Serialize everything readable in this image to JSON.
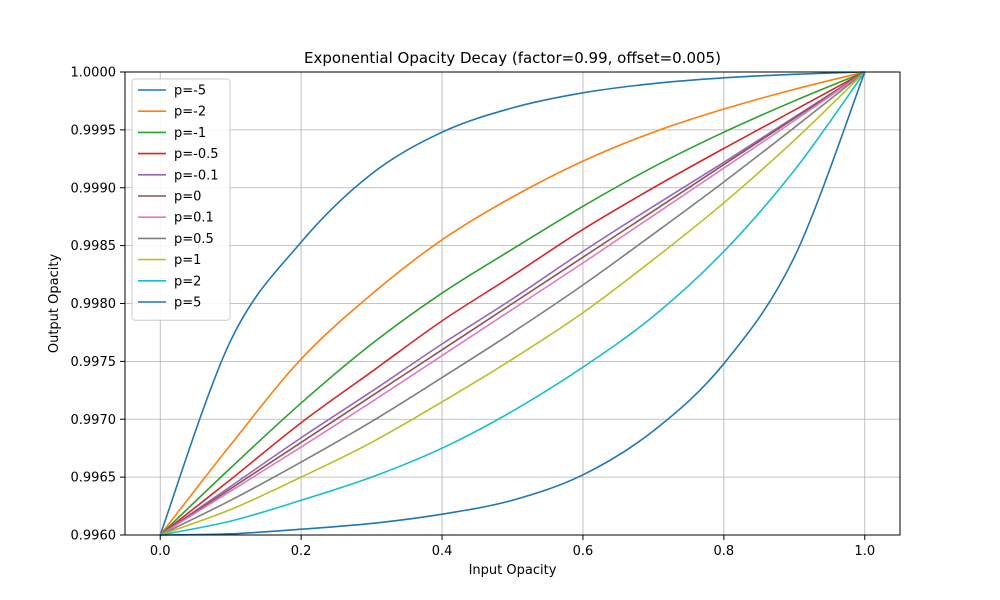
{
  "chart_data": {
    "type": "line",
    "title": "Exponential Opacity Decay (factor=0.99, offset=0.005)",
    "xlabel": "Input Opacity",
    "ylabel": "Output Opacity",
    "xlim": [
      -0.05,
      1.05
    ],
    "ylim": [
      0.996,
      1.0
    ],
    "xticks": [
      0.0,
      0.2,
      0.4,
      0.6,
      0.8,
      1.0
    ],
    "xtick_labels": [
      "0.0",
      "0.2",
      "0.4",
      "0.6",
      "0.8",
      "1.0"
    ],
    "yticks": [
      0.996,
      0.9965,
      0.997,
      0.9975,
      0.998,
      0.9985,
      0.999,
      0.9995,
      1.0
    ],
    "ytick_labels": [
      "0.9960",
      "0.9965",
      "0.9970",
      "0.9975",
      "0.9980",
      "0.9985",
      "0.9990",
      "0.9995",
      "1.0000"
    ],
    "grid": true,
    "legend_position": "top-left",
    "x": [
      0.0,
      0.1,
      0.2,
      0.3,
      0.4,
      0.5,
      0.6,
      0.7,
      0.8,
      0.9,
      1.0
    ],
    "series": [
      {
        "name": "p=-5",
        "color": "#1f77b4",
        "values": [
          0.996,
          0.99768,
          0.99853,
          0.99912,
          0.99948,
          0.99969,
          0.99982,
          0.9999,
          0.99995,
          0.99998,
          1.0
        ]
      },
      {
        "name": "p=-2",
        "color": "#ff7f0e",
        "values": [
          0.996,
          0.99678,
          0.99752,
          0.99808,
          0.99855,
          0.99892,
          0.99923,
          0.99948,
          0.99968,
          0.99985,
          1.0
        ]
      },
      {
        "name": "p=-1",
        "color": "#2ca02c",
        "values": [
          0.996,
          0.99658,
          0.99714,
          0.99765,
          0.99809,
          0.99847,
          0.99884,
          0.99918,
          0.99948,
          0.99975,
          1.0
        ]
      },
      {
        "name": "p=-0.5",
        "color": "#d62728",
        "values": [
          0.996,
          0.99648,
          0.99697,
          0.99741,
          0.99785,
          0.99824,
          0.99864,
          0.999,
          0.99934,
          0.99967,
          1.0
        ]
      },
      {
        "name": "p=-0.1",
        "color": "#9467bd",
        "values": [
          0.996,
          0.99642,
          0.99684,
          0.99724,
          0.99765,
          0.99804,
          0.99845,
          0.99884,
          0.99922,
          0.99961,
          1.0
        ]
      },
      {
        "name": "p=0",
        "color": "#8c564b",
        "values": [
          0.996,
          0.9964,
          0.9968,
          0.9972,
          0.9976,
          0.998,
          0.9984,
          0.9988,
          0.9992,
          0.9996,
          1.0
        ]
      },
      {
        "name": "p=0.1",
        "color": "#e377c2",
        "values": [
          0.996,
          0.99638,
          0.99676,
          0.99715,
          0.99755,
          0.99795,
          0.99835,
          0.99876,
          0.99917,
          0.99958,
          1.0
        ]
      },
      {
        "name": "p=0.5",
        "color": "#7f7f7f",
        "values": [
          0.996,
          0.9963,
          0.99663,
          0.99698,
          0.99736,
          0.99775,
          0.99816,
          0.9986,
          0.99905,
          0.99952,
          1.0
        ]
      },
      {
        "name": "p=1",
        "color": "#bcbd22",
        "values": [
          0.996,
          0.99622,
          0.9965,
          0.9968,
          0.99715,
          0.99752,
          0.99792,
          0.99838,
          0.99887,
          0.99941,
          1.0
        ]
      },
      {
        "name": "p=2",
        "color": "#17becf",
        "values": [
          0.996,
          0.99612,
          0.9963,
          0.9965,
          0.99675,
          0.99707,
          0.99745,
          0.99789,
          0.99845,
          0.99915,
          1.0
        ]
      },
      {
        "name": "p=5",
        "color": "#1f77b4",
        "values": [
          0.996,
          0.99601,
          0.99605,
          0.9961,
          0.99618,
          0.9963,
          0.99652,
          0.9969,
          0.99748,
          0.9984,
          1.0
        ]
      }
    ]
  }
}
